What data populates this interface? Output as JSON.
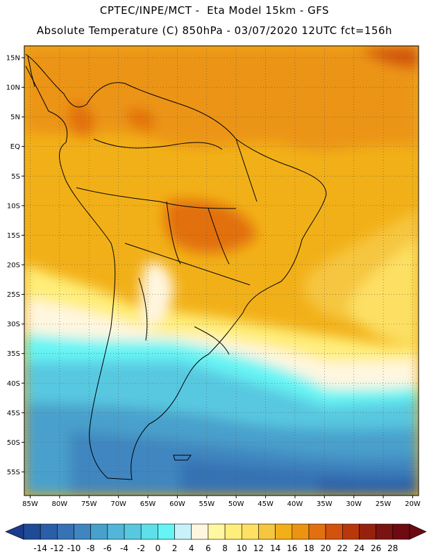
{
  "header": {
    "line1": "CPTEC/INPE/MCT -  Eta Model 15km - GFS",
    "line2": "Absolute Temperature (C) 850hPa - 03/07/2020 12UTC fct=156h"
  },
  "map": {
    "lon_range": [
      -86,
      -19
    ],
    "lat_range": [
      -59,
      17
    ],
    "lat_ticks": [
      {
        "value": 15,
        "label": "15N"
      },
      {
        "value": 10,
        "label": "10N"
      },
      {
        "value": 5,
        "label": "5N"
      },
      {
        "value": 0,
        "label": "EQ"
      },
      {
        "value": -5,
        "label": "5S"
      },
      {
        "value": -10,
        "label": "10S"
      },
      {
        "value": -15,
        "label": "15S"
      },
      {
        "value": -20,
        "label": "20S"
      },
      {
        "value": -25,
        "label": "25S"
      },
      {
        "value": -30,
        "label": "30S"
      },
      {
        "value": -35,
        "label": "35S"
      },
      {
        "value": -40,
        "label": "40S"
      },
      {
        "value": -45,
        "label": "45S"
      },
      {
        "value": -50,
        "label": "50S"
      },
      {
        "value": -55,
        "label": "55S"
      }
    ],
    "lon_ticks": [
      {
        "value": -85,
        "label": "85W"
      },
      {
        "value": -80,
        "label": "80W"
      },
      {
        "value": -75,
        "label": "75W"
      },
      {
        "value": -70,
        "label": "70W"
      },
      {
        "value": -65,
        "label": "65W"
      },
      {
        "value": -60,
        "label": "60W"
      },
      {
        "value": -55,
        "label": "55W"
      },
      {
        "value": -50,
        "label": "50W"
      },
      {
        "value": -45,
        "label": "45W"
      },
      {
        "value": -40,
        "label": "40W"
      },
      {
        "value": -35,
        "label": "35W"
      },
      {
        "value": -30,
        "label": "30W"
      },
      {
        "value": -25,
        "label": "25W"
      },
      {
        "value": -20,
        "label": "20W"
      }
    ],
    "grid": "dotted"
  },
  "colorbar": {
    "labels": [
      "-14",
      "-12",
      "-10",
      "-8",
      "-6",
      "-4",
      "-2",
      "0",
      "2",
      "4",
      "6",
      "8",
      "10",
      "12",
      "14",
      "16",
      "18",
      "20",
      "22",
      "24",
      "26",
      "28"
    ],
    "under_color": "#1b3c8c",
    "over_color": "#6d0a12",
    "colors": [
      "#1e4b96",
      "#2a5ea8",
      "#3672b4",
      "#3f86c0",
      "#48a0cc",
      "#52b6d8",
      "#58c8e0",
      "#5ee0ea",
      "#66f4f4",
      "#c8f2fa",
      "#fff6e0",
      "#fff8a0",
      "#ffee7a",
      "#fde064",
      "#f6c640",
      "#f2b018",
      "#ec9412",
      "#e27010",
      "#d2520e",
      "#b8380c",
      "#96220e",
      "#7a1410",
      "#6d0a12"
    ]
  }
}
